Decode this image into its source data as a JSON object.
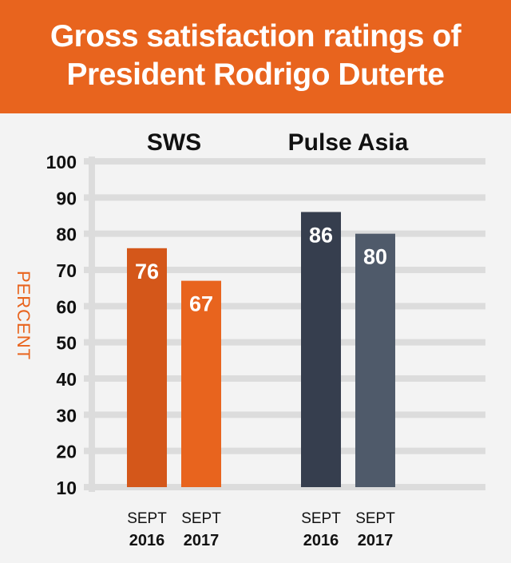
{
  "header": {
    "title_line1": "Gross satisfaction ratings of",
    "title_line2": "President Rodrigo Duterte"
  },
  "colors": {
    "header_bg": "#e8641e",
    "sws_2016": "#d4571a",
    "sws_2017": "#e8641e",
    "pulse_2016": "#363e4e",
    "pulse_2017": "#4f5a6a",
    "grid": "#dcdcdc",
    "ylabel": "#e8641e"
  },
  "chart_data": {
    "type": "bar",
    "ylabel": "PERCENT",
    "ylim": [
      10,
      100
    ],
    "yticks": [
      10,
      20,
      30,
      40,
      50,
      60,
      70,
      80,
      90,
      100
    ],
    "grid": true,
    "groups": [
      {
        "name": "SWS",
        "bars": [
          {
            "label_line1": "SEPT",
            "label_line2": "2016",
            "value": 76,
            "value_label": "76",
            "color": "#d4571a"
          },
          {
            "label_line1": "SEPT",
            "label_line2": "2017",
            "value": 67,
            "value_label": "67",
            "color": "#e8641e"
          }
        ]
      },
      {
        "name": "Pulse Asia",
        "bars": [
          {
            "label_line1": "SEPT",
            "label_line2": "2016",
            "value": 86,
            "value_label": "86",
            "color": "#363e4e"
          },
          {
            "label_line1": "SEPT",
            "label_line2": "2017",
            "value": 80,
            "value_label": "80",
            "color": "#4f5a6a"
          }
        ]
      }
    ]
  }
}
